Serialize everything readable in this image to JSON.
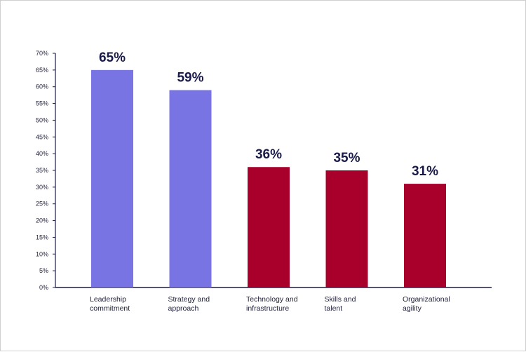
{
  "chart_data": {
    "type": "bar",
    "title": "",
    "xlabel": "",
    "ylabel": "",
    "ylim": [
      0,
      70
    ],
    "yticks": [
      0,
      5,
      10,
      15,
      20,
      25,
      30,
      35,
      40,
      45,
      50,
      55,
      60,
      65,
      70
    ],
    "ytick_labels": [
      "0%",
      "5%",
      "10%",
      "15%",
      "20%",
      "25%",
      "30%",
      "35%",
      "40%",
      "45%",
      "50%",
      "55%",
      "60%",
      "65%",
      "70%"
    ],
    "grid": false,
    "legend": "none",
    "categories": [
      [
        "Leadership",
        "commitment"
      ],
      [
        "Strategy and",
        "approach"
      ],
      [
        "Technology and",
        "infrastructure"
      ],
      [
        "Skills and",
        "talent"
      ],
      [
        "Organizational",
        "agility"
      ]
    ],
    "values": [
      65,
      59,
      36,
      35,
      31
    ],
    "value_labels": [
      "65%",
      "59%",
      "36%",
      "35%",
      "31%"
    ],
    "bar_colors": [
      "#7874e4",
      "#7874e4",
      "#a8002a",
      "#a8002a",
      "#a8002a"
    ],
    "axis_color": "#1a1a4a"
  }
}
